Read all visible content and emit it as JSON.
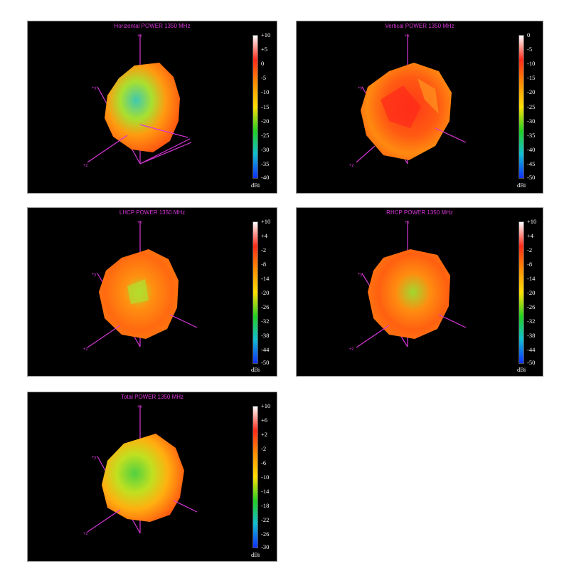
{
  "panels": [
    {
      "title": "Horizontal POWER 1350  MHz",
      "colorbar": {
        "ticks": [
          "+10",
          "+5",
          "0",
          "-5",
          "-10",
          "-15",
          "-20",
          "-25",
          "-30",
          "-35",
          "-40"
        ],
        "unit": "dBi"
      },
      "axes": {
        "x": "+x",
        "y": "+y",
        "z": "+z"
      }
    },
    {
      "title": "Vertical POWER 1350  MHz",
      "colorbar": {
        "ticks": [
          "0",
          "-5",
          "-10",
          "-15",
          "-20",
          "-25",
          "-30",
          "-35",
          "-40",
          "-45",
          "-50"
        ],
        "unit": "dBi"
      },
      "axes": {
        "x": "+x",
        "y": "+y",
        "z": "+z"
      }
    },
    {
      "title": "LHCP POWER 1350  MHz",
      "colorbar": {
        "ticks": [
          "+10",
          "+4",
          "-2",
          "-8",
          "-14",
          "-20",
          "-26",
          "-32",
          "-38",
          "-44",
          "-50"
        ],
        "unit": "dBi"
      },
      "axes": {
        "x": "+x",
        "y": "+y",
        "z": "+z"
      }
    },
    {
      "title": "RHCP POWER 1350  MHz",
      "colorbar": {
        "ticks": [
          "+10",
          "+4",
          "-2",
          "-8",
          "-14",
          "-20",
          "-26",
          "-32",
          "-38",
          "-44",
          "-50"
        ],
        "unit": "dBi"
      },
      "axes": {
        "x": "+x",
        "y": "+y",
        "z": "+z"
      }
    },
    {
      "title": "Total POWER 1350  MHz",
      "colorbar": {
        "ticks": [
          "+10",
          "+6",
          "+2",
          "-2",
          "-6",
          "-10",
          "-14",
          "-18",
          "-22",
          "-26",
          "-30"
        ],
        "unit": "dBi"
      },
      "axes": {
        "x": "+x",
        "y": "+y",
        "z": "+z"
      }
    }
  ],
  "colormap": [
    "#ffffff",
    "#ff2a1a",
    "#ff8c00",
    "#ffe000",
    "#22d022",
    "#10c0d0",
    "#1030ff"
  ],
  "chart_data": [
    {
      "type": "other",
      "title": "Horizontal POWER 1350  MHz",
      "frequency_mhz": 1350,
      "quantity": "Horizontal POWER",
      "unit": "dBi",
      "colorbar_range": [
        -40,
        10
      ],
      "ticks": [
        10,
        5,
        0,
        -5,
        -10,
        -15,
        -20,
        -25,
        -30,
        -35,
        -40
      ]
    },
    {
      "type": "other",
      "title": "Vertical POWER 1350  MHz",
      "frequency_mhz": 1350,
      "quantity": "Vertical POWER",
      "unit": "dBi",
      "colorbar_range": [
        -50,
        0
      ],
      "ticks": [
        0,
        -5,
        -10,
        -15,
        -20,
        -25,
        -30,
        -35,
        -40,
        -45,
        -50
      ]
    },
    {
      "type": "other",
      "title": "LHCP POWER 1350  MHz",
      "frequency_mhz": 1350,
      "quantity": "LHCP POWER",
      "unit": "dBi",
      "colorbar_range": [
        -50,
        10
      ],
      "ticks": [
        10,
        4,
        -2,
        -8,
        -14,
        -20,
        -26,
        -32,
        -38,
        -44,
        -50
      ]
    },
    {
      "type": "other",
      "title": "RHCP POWER 1350  MHz",
      "frequency_mhz": 1350,
      "quantity": "RHCP POWER",
      "unit": "dBi",
      "colorbar_range": [
        -50,
        10
      ],
      "ticks": [
        10,
        4,
        -2,
        -8,
        -14,
        -20,
        -26,
        -32,
        -38,
        -44,
        -50
      ]
    },
    {
      "type": "other",
      "title": "Total POWER 1350  MHz",
      "frequency_mhz": 1350,
      "quantity": "Total POWER",
      "unit": "dBi",
      "colorbar_range": [
        -30,
        10
      ],
      "ticks": [
        10,
        6,
        2,
        -2,
        -6,
        -10,
        -14,
        -18,
        -22,
        -26,
        -30
      ]
    }
  ]
}
